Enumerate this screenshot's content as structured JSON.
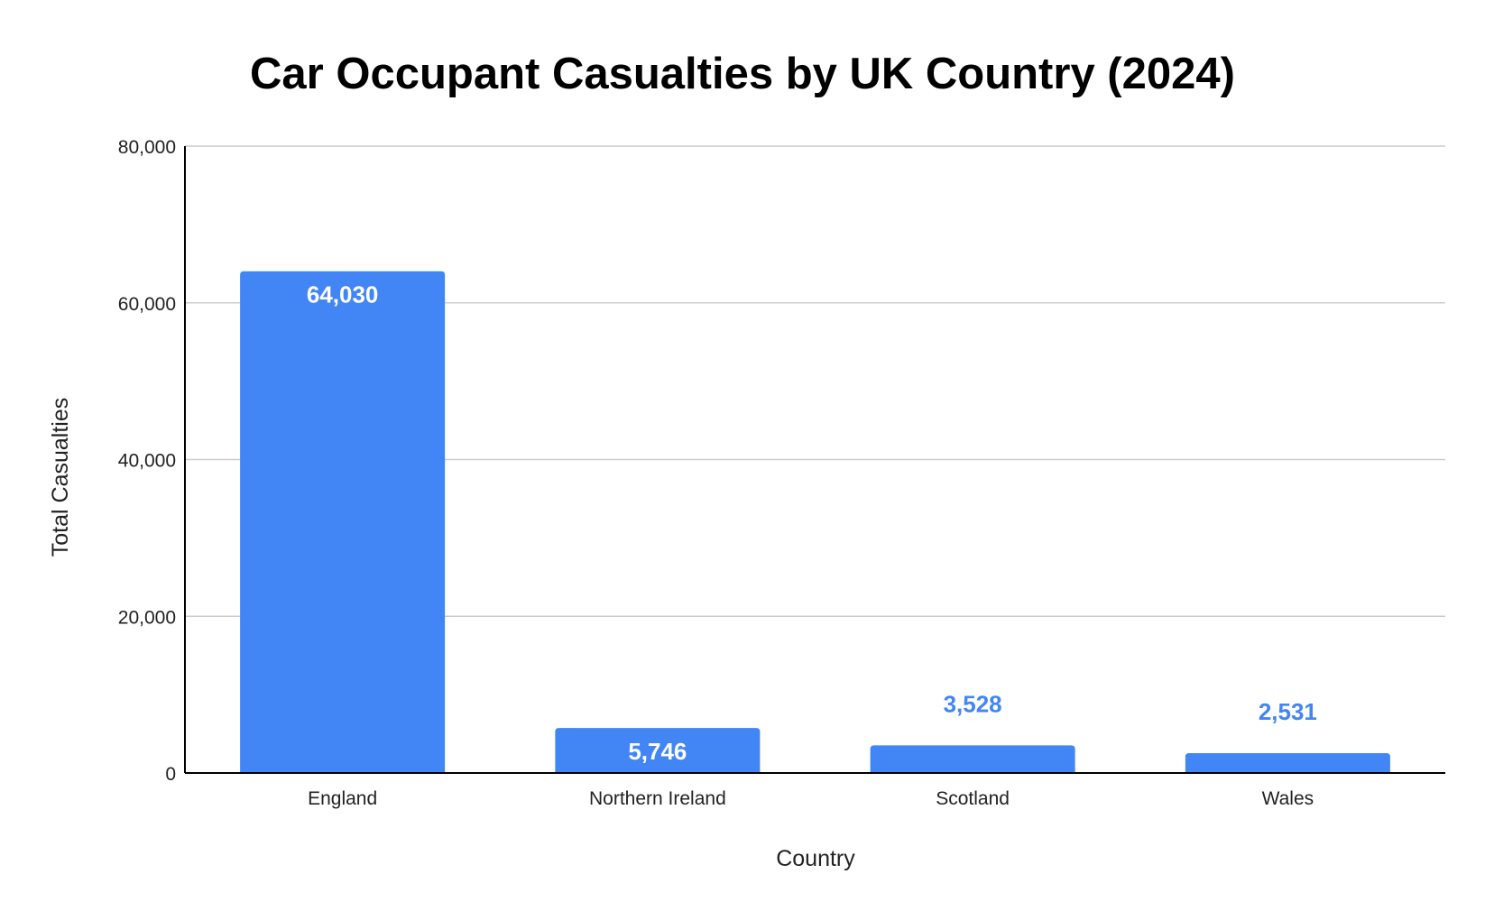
{
  "chart_data": {
    "type": "bar",
    "title": "Car Occupant Casualties by UK Country (2024)",
    "xlabel": "Country",
    "ylabel": "Total Casualties",
    "categories": [
      "England",
      "Northern Ireland",
      "Scotland",
      "Wales"
    ],
    "values": [
      64030,
      5746,
      3528,
      2531
    ],
    "value_labels": [
      "64,030",
      "5,746",
      "3,528",
      "2,531"
    ],
    "ylim": [
      0,
      80000
    ],
    "yticks": [
      0,
      20000,
      40000,
      60000,
      80000
    ],
    "ytick_labels": [
      "0",
      "20,000",
      "40,000",
      "60,000",
      "80,000"
    ],
    "grid": true,
    "legend": "none",
    "colors": {
      "bar": "#4285f4",
      "label_inside": "#ffffff",
      "label_outside": "#4285f4",
      "grid": "#cccccc",
      "axis": "#000000"
    }
  }
}
